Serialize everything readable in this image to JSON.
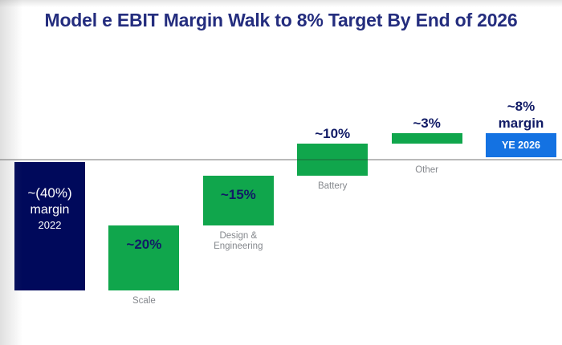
{
  "slide": {
    "title": "Model e EBIT Margin Walk to 8% Target By End of 2026"
  },
  "chart_data": {
    "type": "bar",
    "subtype": "waterfall",
    "title": "Model e EBIT Margin Walk to 8% Target By End of 2026",
    "unit": "EBIT margin, percent",
    "baseline": 0,
    "axis": {
      "zero_line": true,
      "y_implied_range": [
        -40,
        10
      ],
      "gridlines": false,
      "legend": false,
      "tick_labels": false
    },
    "bars": [
      {
        "name": "2022",
        "value": -40,
        "from": 0,
        "to": -40,
        "value_label": "~(40%)",
        "value_sublabel": "margin",
        "value_yearlabel": "2022",
        "label_position": "inside",
        "below_label": "",
        "color": "navy",
        "label_color": "white"
      },
      {
        "name": "Scale",
        "value": 20,
        "from": -40,
        "to": -20,
        "value_label": "~20%",
        "label_position": "inside",
        "below_label": "Scale",
        "color": "green",
        "label_color": "navy_dark"
      },
      {
        "name": "Design & Engineering",
        "value": 15,
        "from": -20,
        "to": -5,
        "value_label": "~15%",
        "label_position": "inside",
        "below_label": "Design &\nEngineering",
        "color": "green",
        "label_color": "navy_dark"
      },
      {
        "name": "Battery",
        "value": 10,
        "from": -5,
        "to": 5,
        "value_label": "~10%",
        "label_position": "above",
        "below_label": "Battery",
        "color": "green",
        "label_color": "navy_dark"
      },
      {
        "name": "Other",
        "value": 3,
        "from": 5,
        "to": 8,
        "value_label": "~3%",
        "label_position": "above",
        "below_label": "Other",
        "color": "green",
        "label_color": "navy_dark"
      },
      {
        "name": "YE 2026",
        "value": 8,
        "from": 0,
        "to": 8,
        "value_label": "~8%\nmargin",
        "inside_label": "YE 2026",
        "label_position": "above",
        "below_label": "",
        "color": "blue",
        "label_color": "navy_dark"
      }
    ],
    "colors": {
      "navy": "#00095B",
      "green": "#10A64C",
      "blue": "#1472E2",
      "title_navy": "#242D7E",
      "value_label_navy": "#111B66",
      "category_gray": "#85888D",
      "baseline_gray": "#B9B9B9",
      "bar_label_white": "#FFFFFF"
    }
  }
}
